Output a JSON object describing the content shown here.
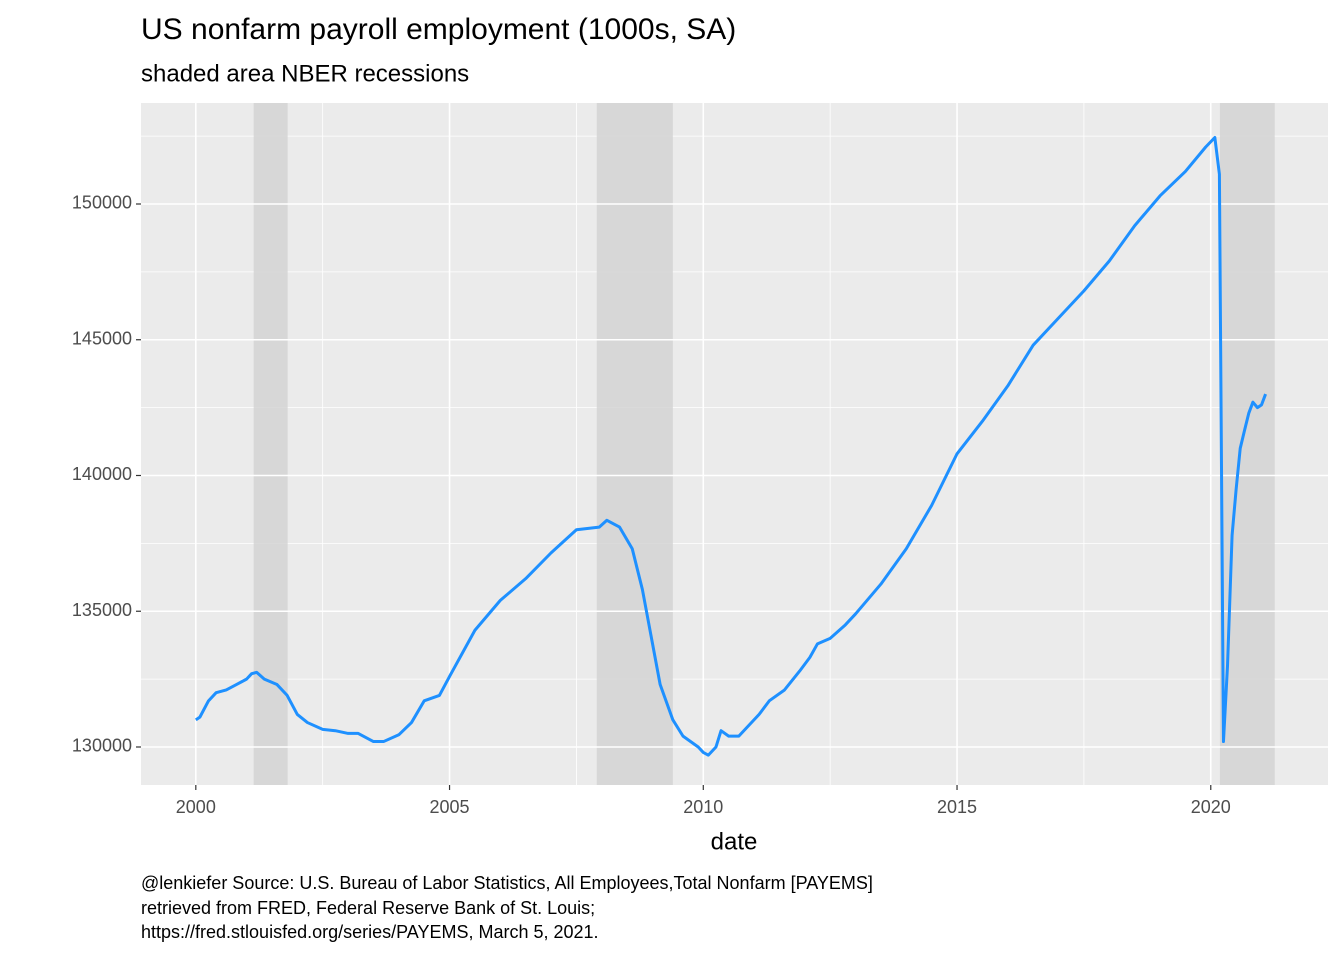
{
  "chart_data": {
    "type": "line",
    "title": "US nonfarm payroll employment (1000s, SA)",
    "subtitle": "shaded area NBER recessions",
    "x_label": "date",
    "caption": [
      "@lenkiefer Source: U.S. Bureau of Labor Statistics, All Employees,Total Nonfarm [PAYEMS]",
      "retrieved from FRED, Federal Reserve Bank of St. Louis;",
      "https://fred.stlouisfed.org/series/PAYEMS, March 5, 2021."
    ],
    "xlim": [
      1998.92,
      2022.31
    ],
    "ylim": [
      128600,
      153720
    ],
    "xticks": [
      2000,
      2005,
      2010,
      2015,
      2020
    ],
    "yticks": [
      130000,
      135000,
      140000,
      145000,
      150000
    ],
    "grid": true,
    "recessions": [
      [
        2001.14,
        2001.81
      ],
      [
        2007.9,
        2009.4
      ],
      [
        2020.18,
        2021.26
      ]
    ],
    "recession_color": "#d3d3d3",
    "series": [
      {
        "color": "#1e90ff",
        "x": [
          2000.0,
          2000.08,
          2000.25,
          2000.4,
          2000.6,
          2000.8,
          2001.0,
          2001.1,
          2001.2,
          2001.35,
          2001.6,
          2001.8,
          2002.0,
          2002.2,
          2002.5,
          2002.75,
          2003.0,
          2003.2,
          2003.5,
          2003.7,
          2004.0,
          2004.25,
          2004.5,
          2004.8,
          2005.0,
          2005.5,
          2006.0,
          2006.5,
          2007.0,
          2007.5,
          2007.95,
          2008.1,
          2008.35,
          2008.6,
          2008.8,
          2009.0,
          2009.15,
          2009.4,
          2009.6,
          2009.9,
          2010.0,
          2010.1,
          2010.25,
          2010.35,
          2010.5,
          2010.7,
          2010.9,
          2011.1,
          2011.3,
          2011.6,
          2011.9,
          2012.1,
          2012.25,
          2012.5,
          2012.8,
          2013.0,
          2013.5,
          2014.0,
          2014.5,
          2015.0,
          2015.5,
          2016.0,
          2016.5,
          2017.0,
          2017.5,
          2018.0,
          2018.5,
          2019.0,
          2019.5,
          2019.9,
          2020.08,
          2020.17,
          2020.25,
          2020.33,
          2020.42,
          2020.5,
          2020.58,
          2020.67,
          2020.75,
          2020.83,
          2020.92,
          2021.0,
          2021.08
        ],
        "values": [
          131000,
          131100,
          131700,
          132000,
          132100,
          132300,
          132500,
          132700,
          132750,
          132500,
          132300,
          131900,
          131200,
          130900,
          130650,
          130600,
          130500,
          130500,
          130200,
          130200,
          130450,
          130900,
          131700,
          131900,
          132600,
          134300,
          135400,
          136200,
          137150,
          138000,
          138100,
          138350,
          138100,
          137300,
          135800,
          133800,
          132300,
          131000,
          130400,
          130000,
          129800,
          129700,
          130000,
          130600,
          130400,
          130400,
          130800,
          131200,
          131700,
          132100,
          132800,
          133300,
          133800,
          134000,
          134500,
          134900,
          136000,
          137300,
          138900,
          140800,
          142000,
          143300,
          144800,
          145800,
          146800,
          147900,
          149200,
          150300,
          151200,
          152100,
          152450,
          151100,
          130200,
          133000,
          137800,
          139500,
          141000,
          141700,
          142300,
          142700,
          142500,
          142600,
          143000
        ]
      }
    ]
  }
}
